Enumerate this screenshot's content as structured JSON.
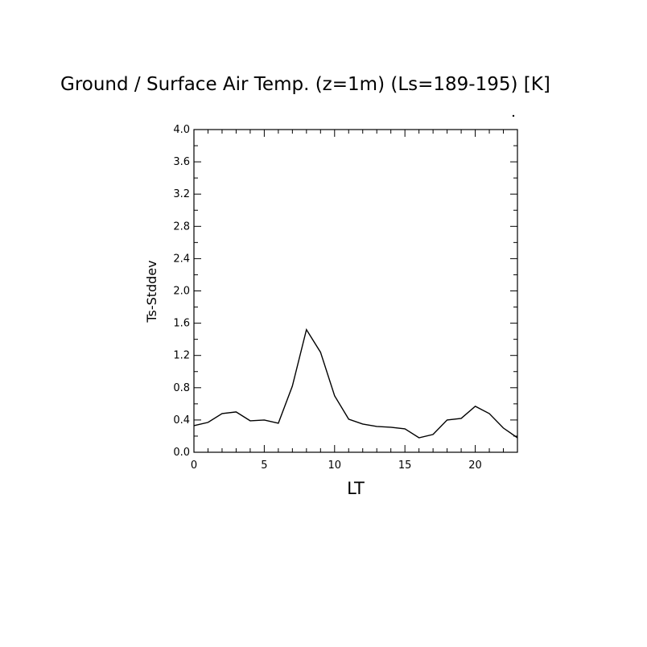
{
  "chart_data": {
    "type": "line",
    "title": "Ground / Surface Air Temp. (z=1m) (Ls=189-195) [K]",
    "xlabel": "LT",
    "ylabel": "Ts-Stddev",
    "xlim": [
      0,
      23
    ],
    "ylim": [
      0,
      4
    ],
    "xticks": [
      0,
      5,
      10,
      15,
      20
    ],
    "xtick_labels": [
      "0",
      "5",
      "10",
      "15",
      "20"
    ],
    "yticks": [
      0,
      0.4,
      0.8,
      1.2,
      1.6,
      2.0,
      2.4,
      2.8,
      3.2,
      3.6,
      4.0
    ],
    "ytick_labels": [
      "0.0",
      "0.4",
      "0.8",
      "1.2",
      "1.6",
      "2.0",
      "2.4",
      "2.8",
      "3.2",
      "3.6",
      "4.0"
    ],
    "grid": false,
    "line_color": "#000000",
    "series": [
      {
        "x": [
          0,
          1,
          2,
          3,
          4,
          5,
          6,
          7,
          8,
          9,
          10,
          11,
          12,
          13,
          14,
          15,
          16,
          17,
          18,
          19,
          20,
          21,
          22,
          23
        ],
        "values": [
          0.33,
          0.37,
          0.48,
          0.5,
          0.39,
          0.4,
          0.36,
          0.82,
          1.52,
          1.24,
          0.7,
          0.41,
          0.35,
          0.32,
          0.31,
          0.29,
          0.18,
          0.22,
          0.4,
          0.42,
          0.57,
          0.48,
          0.3,
          0.18
        ]
      }
    ]
  }
}
